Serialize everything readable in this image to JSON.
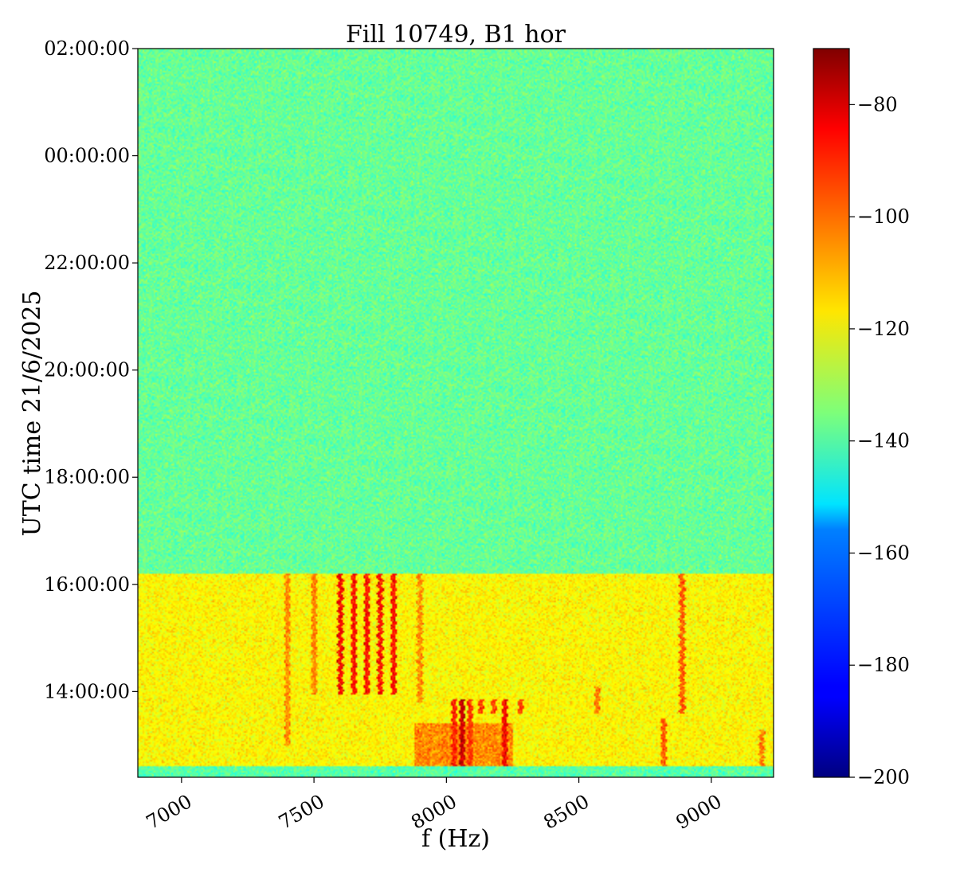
{
  "chart_data": {
    "type": "heatmap",
    "title": "Fill 10749, B1 hor",
    "xlabel": "f (Hz)",
    "ylabel": "UTC time 21/6/2025",
    "xlim": [
      6835,
      9235
    ],
    "x_ticks": [
      {
        "value": 7000,
        "label": "7000"
      },
      {
        "value": 7500,
        "label": "7500"
      },
      {
        "value": 8000,
        "label": "8000"
      },
      {
        "value": 8500,
        "label": "8500"
      },
      {
        "value": 9000,
        "label": "9000"
      }
    ],
    "ylim_hours": [
      12.4,
      26.0
    ],
    "y_ticks": [
      {
        "value": 14,
        "label": "14:00:00"
      },
      {
        "value": 16,
        "label": "16:00:00"
      },
      {
        "value": 18,
        "label": "18:00:00"
      },
      {
        "value": 20,
        "label": "20:00:00"
      },
      {
        "value": 22,
        "label": "22:00:00"
      },
      {
        "value": 24,
        "label": "00:00:00"
      },
      {
        "value": 26,
        "label": "02:00:00"
      }
    ],
    "colormap": "jet",
    "colorbar": {
      "min": -200,
      "max": -70,
      "ticks": [
        {
          "value": -80,
          "label": "−80"
        },
        {
          "value": -100,
          "label": "−100"
        },
        {
          "value": -120,
          "label": "−120"
        },
        {
          "value": -140,
          "label": "−140"
        },
        {
          "value": -160,
          "label": "−160"
        },
        {
          "value": -180,
          "label": "−180"
        },
        {
          "value": -200,
          "label": "−200"
        }
      ]
    },
    "regions": [
      {
        "t_start": 12.4,
        "t_end": 12.6,
        "level_db": -140
      },
      {
        "t_start": 12.6,
        "t_end": 16.2,
        "level_db": -118
      },
      {
        "t_start": 16.2,
        "t_end": 26.0,
        "level_db": -138
      }
    ],
    "lines": [
      {
        "f": 7600,
        "t_start": 13.95,
        "t_end": 16.2,
        "level_db": -88
      },
      {
        "f": 7650,
        "t_start": 13.95,
        "t_end": 16.2,
        "level_db": -90
      },
      {
        "f": 7700,
        "t_start": 13.95,
        "t_end": 16.2,
        "level_db": -90
      },
      {
        "f": 7750,
        "t_start": 13.95,
        "t_end": 16.2,
        "level_db": -90
      },
      {
        "f": 7800,
        "t_start": 13.95,
        "t_end": 16.2,
        "level_db": -90
      },
      {
        "f": 7500,
        "t_start": 13.95,
        "t_end": 16.2,
        "level_db": -105
      },
      {
        "f": 7400,
        "t_start": 13.0,
        "t_end": 16.2,
        "level_db": -106
      },
      {
        "f": 7900,
        "t_start": 13.8,
        "t_end": 16.2,
        "level_db": -106
      },
      {
        "f": 8030,
        "t_start": 12.6,
        "t_end": 13.85,
        "level_db": -92
      },
      {
        "f": 8060,
        "t_start": 12.6,
        "t_end": 13.85,
        "level_db": -82
      },
      {
        "f": 8090,
        "t_start": 12.6,
        "t_end": 13.85,
        "level_db": -95
      },
      {
        "f": 8130,
        "t_start": 13.6,
        "t_end": 13.85,
        "level_db": -95
      },
      {
        "f": 8180,
        "t_start": 13.6,
        "t_end": 13.85,
        "level_db": -97
      },
      {
        "f": 8220,
        "t_start": 12.6,
        "t_end": 13.85,
        "level_db": -88
      },
      {
        "f": 8280,
        "t_start": 13.6,
        "t_end": 13.85,
        "level_db": -96
      },
      {
        "f": 8890,
        "t_start": 13.6,
        "t_end": 16.2,
        "level_db": -100
      },
      {
        "f": 8820,
        "t_start": 12.6,
        "t_end": 13.5,
        "level_db": -100
      },
      {
        "f": 9190,
        "t_start": 12.6,
        "t_end": 13.3,
        "level_db": -104
      },
      {
        "f": 8570,
        "t_start": 13.6,
        "t_end": 14.1,
        "level_db": -104
      }
    ],
    "patches": [
      {
        "f_start": 7880,
        "f_end": 8250,
        "t_start": 12.6,
        "t_end": 13.4,
        "level_db": -104
      }
    ]
  }
}
